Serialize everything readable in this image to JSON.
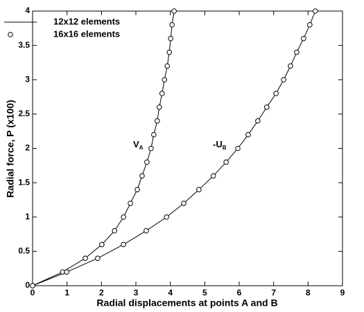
{
  "chart_data": {
    "type": "line",
    "xlabel": "Radial displacements at points A and B",
    "ylabel": "Radial force, P (x100)",
    "xlim": [
      0,
      9
    ],
    "xticks": [
      0,
      1,
      2,
      3,
      4,
      5,
      6,
      7,
      8,
      9
    ],
    "ylim": [
      0,
      4
    ],
    "yticks": [
      0,
      0.5,
      1,
      1.5,
      2,
      2.5,
      3,
      3.5,
      4
    ],
    "legend": "upper left",
    "color": "#000000",
    "series": [
      {
        "name": "12x12 elements",
        "marker": "line",
        "curves": [
          {
            "x": [
              0,
              0.87,
              1.53,
              2.01,
              2.38,
              2.64,
              2.84,
              3.04,
              3.18,
              3.32,
              3.44,
              3.52,
              3.62,
              3.68,
              3.76,
              3.83,
              3.91,
              3.97,
              4.01,
              4.05,
              4.11
            ],
            "values": [
              0,
              0.2,
              0.4,
              0.6,
              0.8,
              1.0,
              1.2,
              1.4,
              1.6,
              1.8,
              2.0,
              2.2,
              2.4,
              2.6,
              2.8,
              3.0,
              3.2,
              3.4,
              3.6,
              3.8,
              4.0
            ]
          },
          {
            "x": [
              0,
              0.99,
              1.89,
              2.64,
              3.3,
              3.89,
              4.39,
              4.83,
              5.25,
              5.62,
              5.96,
              6.26,
              6.54,
              6.8,
              7.07,
              7.29,
              7.49,
              7.67,
              7.87,
              8.05,
              8.21
            ],
            "values": [
              0,
              0.2,
              0.4,
              0.6,
              0.8,
              1.0,
              1.2,
              1.4,
              1.6,
              1.8,
              2.0,
              2.2,
              2.4,
              2.6,
              2.8,
              3.0,
              3.2,
              3.4,
              3.6,
              3.8,
              4.0
            ]
          }
        ]
      },
      {
        "name": "16x16 elements",
        "marker": "circle",
        "curves": [
          {
            "x": [
              0,
              0.87,
              1.53,
              2.01,
              2.38,
              2.64,
              2.84,
              3.04,
              3.18,
              3.32,
              3.44,
              3.52,
              3.62,
              3.68,
              3.76,
              3.83,
              3.91,
              3.97,
              4.01,
              4.05,
              4.11
            ],
            "values": [
              0,
              0.2,
              0.4,
              0.6,
              0.8,
              1.0,
              1.2,
              1.4,
              1.6,
              1.8,
              2.0,
              2.2,
              2.4,
              2.6,
              2.8,
              3.0,
              3.2,
              3.4,
              3.6,
              3.8,
              4.0
            ]
          },
          {
            "x": [
              0,
              0.99,
              1.89,
              2.64,
              3.3,
              3.89,
              4.39,
              4.83,
              5.25,
              5.62,
              5.96,
              6.26,
              6.54,
              6.8,
              7.07,
              7.29,
              7.49,
              7.67,
              7.87,
              8.05,
              8.21
            ],
            "values": [
              0,
              0.2,
              0.4,
              0.6,
              0.8,
              1.0,
              1.2,
              1.4,
              1.6,
              1.8,
              2.0,
              2.2,
              2.4,
              2.6,
              2.8,
              3.0,
              3.2,
              3.4,
              3.6,
              3.8,
              4.0
            ]
          }
        ]
      }
    ],
    "annotations": [
      {
        "text": "V",
        "sub": "A"
      },
      {
        "text": "-U",
        "sub": "B"
      }
    ]
  }
}
